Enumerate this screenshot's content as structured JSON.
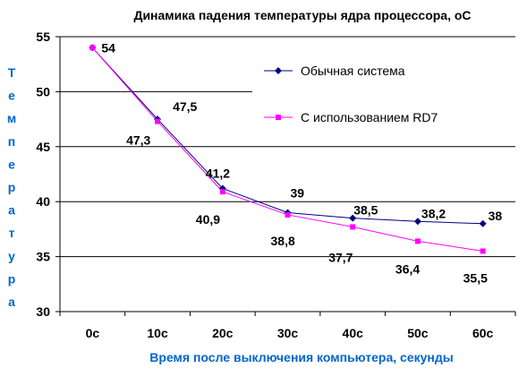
{
  "chart_data": {
    "type": "line",
    "title": "Динамика падения температуры ядра процессора, оС",
    "xlabel": "Время после выключения компьютера, секунды",
    "ylabel": "Температура",
    "categories": [
      "0с",
      "10с",
      "20с",
      "30с",
      "40с",
      "50с",
      "60с"
    ],
    "ylim": [
      30,
      55
    ],
    "yticks": [
      "30",
      "35",
      "40",
      "45",
      "50",
      "55"
    ],
    "grid": true,
    "legend_position": "top-right",
    "series": [
      {
        "name": "Обычная система",
        "values": [
          54,
          47.5,
          41.2,
          39,
          38.5,
          38.2,
          38
        ],
        "labels": [
          "54",
          "47,5",
          "41,2",
          "39",
          "38,5",
          "38,2",
          "38"
        ],
        "color": "#000080",
        "marker": "diamond"
      },
      {
        "name": "С использованием RD7",
        "values": [
          54,
          47.3,
          40.9,
          38.8,
          37.7,
          36.4,
          35.5
        ],
        "labels": [
          "",
          "47,3",
          "40,9",
          "38,8",
          "37,7",
          "36,4",
          "35,5"
        ],
        "color": "#FF00FF",
        "marker": "square"
      }
    ],
    "axis_label_color": "#0066CC"
  }
}
